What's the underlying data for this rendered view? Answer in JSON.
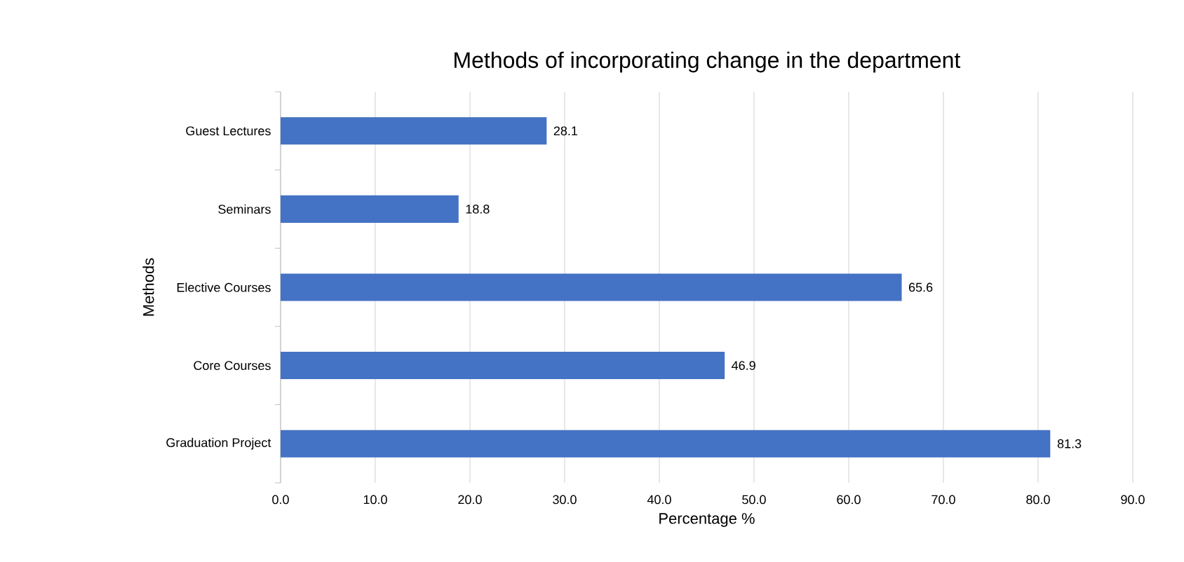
{
  "chart_data": {
    "type": "bar",
    "orientation": "horizontal",
    "title": "Methods of incorporating change in the department",
    "xlabel": "Percentage %",
    "ylabel": "Methods",
    "categories": [
      "Guest Lectures",
      "Seminars",
      "Elective Courses",
      "Core Courses",
      "Graduation Project"
    ],
    "values": [
      28.1,
      18.8,
      65.6,
      46.9,
      81.3
    ],
    "color": "#4472c4",
    "data_labels": true,
    "grid": "x",
    "xlim": [
      0,
      90
    ],
    "xticks": [
      {
        "value": 0,
        "label": "0.0"
      },
      {
        "value": 10,
        "label": "10.0"
      },
      {
        "value": 20,
        "label": "20.0"
      },
      {
        "value": 30,
        "label": "30.0"
      },
      {
        "value": 40,
        "label": "40.0"
      },
      {
        "value": 50,
        "label": "50.0"
      },
      {
        "value": 60,
        "label": "60.0"
      },
      {
        "value": 70,
        "label": "70.0"
      },
      {
        "value": 80,
        "label": "80.0"
      },
      {
        "value": 90,
        "label": "90.0"
      }
    ]
  }
}
